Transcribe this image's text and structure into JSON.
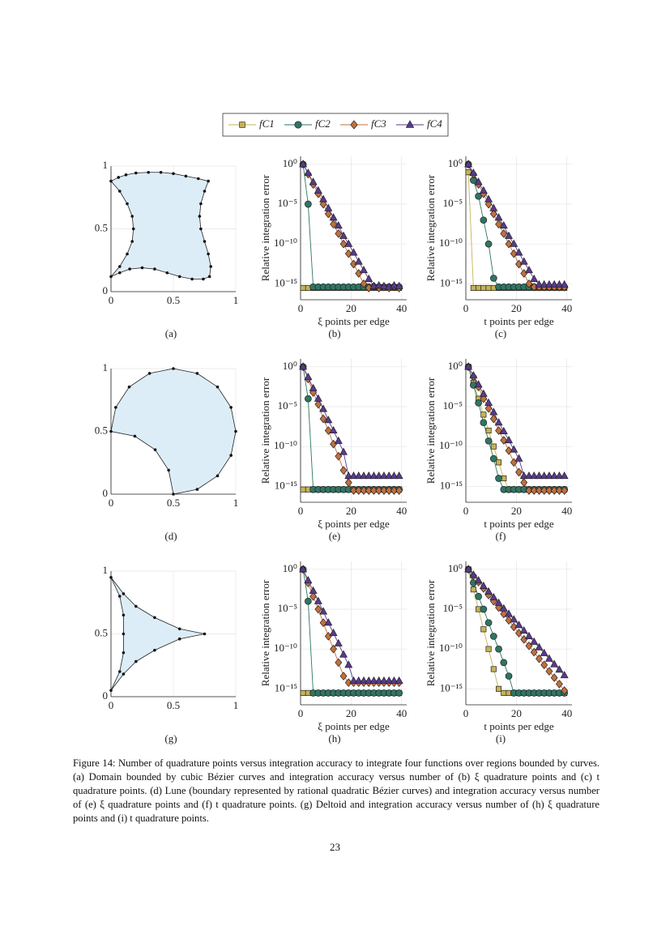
{
  "series": [
    {
      "name": "fC1",
      "color": "#c4b356",
      "marker": "square"
    },
    {
      "name": "fC2",
      "color": "#2f7563",
      "marker": "circle"
    },
    {
      "name": "fC3",
      "color": "#c2703d",
      "marker": "diamond"
    },
    {
      "name": "fC4",
      "color": "#5a3a8e",
      "marker": "triangle"
    }
  ],
  "panels": [
    {
      "type": "domain",
      "label": "(a)",
      "grid": true,
      "xlim": [
        0,
        1
      ],
      "ylim": [
        0,
        1
      ],
      "xticks": [
        0,
        0.5,
        1
      ],
      "yticks": [
        0,
        0.5,
        1
      ],
      "fill": "#dcedf8",
      "x": [
        0,
        0.06,
        0.12,
        0.2,
        0.3,
        0.4,
        0.5,
        0.6,
        0.7,
        0.78,
        0.75,
        0.72,
        0.71,
        0.72,
        0.75,
        0.78,
        0.8,
        0.79,
        0.74,
        0.65,
        0.55,
        0.45,
        0.35,
        0.25,
        0.15,
        0.07,
        0,
        0.07,
        0.13,
        0.17,
        0.18,
        0.17,
        0.13,
        0.07
      ],
      "y": [
        0.88,
        0.91,
        0.93,
        0.945,
        0.95,
        0.95,
        0.94,
        0.92,
        0.9,
        0.88,
        0.8,
        0.7,
        0.6,
        0.5,
        0.4,
        0.3,
        0.2,
        0.12,
        0.1,
        0.1,
        0.12,
        0.15,
        0.18,
        0.19,
        0.18,
        0.15,
        0.12,
        0.2,
        0.3,
        0.4,
        0.5,
        0.6,
        0.7,
        0.8
      ]
    },
    {
      "type": "convergence",
      "label": "(b)",
      "xlabel": "ξ points per edge",
      "ylabel": "Relative integration error",
      "log": true,
      "grid": true,
      "xlim": [
        0,
        42
      ],
      "ylim": [
        1e-17,
        10
      ],
      "xticks": [
        0,
        20,
        40
      ],
      "yticks": [
        {
          "value": 1,
          "label": "10⁰"
        },
        {
          "value": 1e-05,
          "label": "10⁻⁵"
        },
        {
          "value": 1e-10,
          "label": "10⁻¹⁰"
        },
        {
          "value": 1e-15,
          "label": "10⁻¹⁵"
        }
      ],
      "x": [
        1,
        3,
        5,
        7,
        9,
        11,
        13,
        15,
        17,
        19,
        21,
        23,
        25,
        27,
        29,
        31,
        33,
        35,
        37,
        39
      ],
      "series": [
        {
          "values": [
            3e-16,
            3e-16,
            3e-16,
            3e-16,
            3e-16,
            3e-16,
            3e-16,
            3e-16,
            3e-16,
            3e-16,
            3e-16,
            3e-16,
            3e-16,
            3e-16,
            3e-16,
            3e-16,
            3e-16,
            3e-16,
            3e-16,
            3e-16
          ]
        },
        {
          "values": [
            1,
            1e-05,
            4e-16,
            4e-16,
            4e-16,
            4e-16,
            4e-16,
            4e-16,
            4e-16,
            4e-16,
            4e-16,
            4e-16,
            4e-16,
            4e-16,
            4e-16,
            4e-16,
            4e-16,
            4e-16,
            4e-16,
            4e-16
          ]
        },
        {
          "values": [
            1,
            0.06,
            0.003,
            0.0002,
            1e-05,
            6e-07,
            3e-08,
            2e-09,
            1e-10,
            6e-12,
            3e-13,
            2e-14,
            1e-15,
            3e-16,
            5e-16,
            3e-16,
            4e-16,
            3e-16,
            5e-16,
            3e-16
          ]
        },
        {
          "values": [
            1,
            0.08,
            0.006,
            0.0005,
            4e-05,
            3e-06,
            2e-07,
            2e-08,
            1e-09,
            1e-10,
            8e-12,
            6e-13,
            5e-14,
            4e-15,
            5e-16,
            6e-16,
            5e-16,
            4e-16,
            6e-16,
            5e-16
          ]
        }
      ]
    },
    {
      "type": "convergence",
      "label": "(c)",
      "xlabel": "t points per edge",
      "ylabel": "Relative integration error",
      "log": true,
      "grid": true,
      "xlim": [
        0,
        42
      ],
      "ylim": [
        1e-17,
        10
      ],
      "xticks": [
        0,
        20,
        40
      ],
      "yticks": [
        {
          "value": 1,
          "label": "10⁰"
        },
        {
          "value": 1e-05,
          "label": "10⁻⁵"
        },
        {
          "value": 1e-10,
          "label": "10⁻¹⁰"
        },
        {
          "value": 1e-15,
          "label": "10⁻¹⁵"
        }
      ],
      "x": [
        1,
        3,
        5,
        7,
        9,
        11,
        13,
        15,
        17,
        19,
        21,
        23,
        25,
        27,
        29,
        31,
        33,
        35,
        37,
        39
      ],
      "series": [
        {
          "values": [
            0.1,
            3e-16,
            3e-16,
            3e-16,
            3e-16,
            3e-16,
            3e-16,
            3e-16,
            3e-16,
            3e-16,
            3e-16,
            3e-16,
            3e-16,
            3e-16,
            3e-16,
            3e-16,
            3e-16,
            3e-16,
            3e-16,
            3e-16
          ]
        },
        {
          "values": [
            1,
            0.01,
            0.0001,
            1e-07,
            1e-10,
            5e-15,
            4e-16,
            4e-16,
            4e-16,
            4e-16,
            4e-16,
            4e-16,
            4e-16,
            4e-16,
            4e-16,
            4e-16,
            4e-16,
            4e-16,
            4e-16,
            4e-16
          ]
        },
        {
          "values": [
            1,
            0.06,
            0.003,
            0.0002,
            1e-05,
            6e-07,
            3e-08,
            2e-09,
            1e-10,
            6e-12,
            3e-13,
            2e-14,
            1e-15,
            4e-16,
            4e-16,
            4e-16,
            4e-16,
            4e-16,
            4e-16,
            4e-16
          ]
        },
        {
          "values": [
            1,
            0.08,
            0.006,
            0.0005,
            4e-05,
            3e-06,
            2e-07,
            2e-08,
            1e-09,
            1e-10,
            8e-12,
            6e-13,
            5e-14,
            4e-15,
            8e-16,
            8e-16,
            8e-16,
            8e-16,
            8e-16,
            8e-16
          ]
        }
      ]
    },
    {
      "type": "domain",
      "label": "(d)",
      "grid": true,
      "xlim": [
        0,
        1
      ],
      "ylim": [
        0,
        1
      ],
      "xticks": [
        0,
        0.5,
        1
      ],
      "yticks": [
        0,
        0.5,
        1
      ],
      "fill": "#dcedf8",
      "x": [
        0,
        0.038,
        0.146,
        0.309,
        0.5,
        0.691,
        0.854,
        0.962,
        1,
        0.962,
        0.854,
        0.691,
        0.5,
        0.462,
        0.354,
        0.191
      ],
      "y": [
        0.5,
        0.691,
        0.854,
        0.962,
        1,
        0.962,
        0.854,
        0.691,
        0.5,
        0.309,
        0.146,
        0.038,
        0,
        0.191,
        0.354,
        0.462
      ]
    },
    {
      "type": "convergence",
      "label": "(e)",
      "xlabel": "ξ points per edge",
      "ylabel": "Relative integration error",
      "log": true,
      "grid": true,
      "xlim": [
        0,
        42
      ],
      "ylim": [
        1e-17,
        10
      ],
      "xticks": [
        0,
        20,
        40
      ],
      "yticks": [
        {
          "value": 1,
          "label": "10⁰"
        },
        {
          "value": 1e-05,
          "label": "10⁻⁵"
        },
        {
          "value": 1e-10,
          "label": "10⁻¹⁰"
        },
        {
          "value": 1e-15,
          "label": "10⁻¹⁵"
        }
      ],
      "x": [
        1,
        3,
        5,
        7,
        9,
        11,
        13,
        15,
        17,
        19,
        21,
        23,
        25,
        27,
        29,
        31,
        33,
        35,
        37,
        39
      ],
      "series": [
        {
          "values": [
            4e-16,
            4e-16,
            4e-16,
            4e-16,
            4e-16,
            4e-16,
            4e-16,
            4e-16,
            4e-16,
            4e-16,
            4e-16,
            4e-16,
            4e-16,
            4e-16,
            4e-16,
            4e-16,
            4e-16,
            4e-16,
            4e-16,
            4e-16
          ]
        },
        {
          "values": [
            1,
            0.0001,
            4e-16,
            4e-16,
            4e-16,
            4e-16,
            4e-16,
            4e-16,
            4e-16,
            4e-16,
            4e-16,
            4e-16,
            4e-16,
            4e-16,
            4e-16,
            4e-16,
            4e-16,
            4e-16,
            4e-16,
            4e-16
          ]
        },
        {
          "values": [
            1,
            0.03,
            0.0006,
            2e-05,
            3e-07,
            1e-08,
            2e-10,
            6e-12,
            1e-13,
            3e-15,
            3e-16,
            3e-16,
            3e-16,
            3e-16,
            3e-16,
            3e-16,
            3e-16,
            3e-16,
            3e-16,
            3e-16
          ]
        },
        {
          "values": [
            1,
            0.05,
            0.002,
            0.0001,
            5e-06,
            2e-07,
            1e-08,
            5e-10,
            2e-11,
            2e-14,
            2e-14,
            2e-14,
            2e-14,
            2e-14,
            2e-14,
            2e-14,
            2e-14,
            2e-14,
            2e-14,
            2e-14
          ]
        }
      ]
    },
    {
      "type": "convergence",
      "label": "(f)",
      "xlabel": "t points per edge",
      "ylabel": "Relative integration error",
      "log": true,
      "grid": true,
      "xlim": [
        0,
        42
      ],
      "ylim": [
        1e-17,
        10
      ],
      "xticks": [
        0,
        20,
        40
      ],
      "yticks": [
        {
          "value": 1,
          "label": "10⁰"
        },
        {
          "value": 1e-05,
          "label": "10⁻⁵"
        },
        {
          "value": 1e-10,
          "label": "10⁻¹⁰"
        },
        {
          "value": 1e-15,
          "label": "10⁻¹⁵"
        }
      ],
      "x": [
        1,
        3,
        5,
        7,
        9,
        11,
        13,
        15,
        17,
        19,
        21,
        23,
        25,
        27,
        29,
        31,
        33,
        35,
        37,
        39
      ],
      "series": [
        {
          "values": [
            1,
            0.01,
            0.0001,
            1e-06,
            1e-08,
            1e-10,
            1e-12,
            1e-14,
            4e-16,
            4e-16,
            4e-16,
            4e-16,
            4e-16,
            4e-16,
            4e-16,
            4e-16,
            4e-16,
            4e-16,
            4e-16,
            4e-16
          ]
        },
        {
          "values": [
            1,
            0.005,
            3e-05,
            1e-07,
            5e-10,
            3e-12,
            1e-14,
            4e-16,
            4e-16,
            4e-16,
            4e-16,
            4e-16,
            4e-16,
            4e-16,
            4e-16,
            4e-16,
            4e-16,
            4e-16,
            4e-16,
            4e-16
          ]
        },
        {
          "values": [
            1,
            0.06,
            0.003,
            0.0001,
            6e-06,
            3e-07,
            1e-08,
            6e-10,
            3e-11,
            1e-12,
            6e-14,
            3e-15,
            3e-16,
            3e-16,
            3e-16,
            3e-16,
            3e-16,
            3e-16,
            3e-16,
            3e-16
          ]
        },
        {
          "values": [
            1,
            0.08,
            0.006,
            0.0004,
            3e-05,
            2e-06,
            1e-07,
            8e-09,
            6e-10,
            4e-11,
            3e-12,
            2e-14,
            2e-14,
            2e-14,
            2e-14,
            2e-14,
            2e-14,
            2e-14,
            2e-14,
            2e-14
          ]
        }
      ]
    },
    {
      "type": "domain",
      "label": "(g)",
      "grid": true,
      "xlim": [
        0,
        1
      ],
      "ylim": [
        0,
        1
      ],
      "xticks": [
        0,
        0.5,
        1
      ],
      "yticks": [
        0,
        0.5,
        1
      ],
      "fill": "#dcedf8",
      "x": [
        0,
        0.1,
        0.2,
        0.35,
        0.55,
        0.75,
        0.55,
        0.35,
        0.2,
        0.1,
        0,
        0.07,
        0.1,
        0.1,
        0.1,
        0.07
      ],
      "y": [
        0.95,
        0.82,
        0.72,
        0.63,
        0.54,
        0.5,
        0.46,
        0.37,
        0.28,
        0.18,
        0.05,
        0.2,
        0.35,
        0.5,
        0.65,
        0.8
      ]
    },
    {
      "type": "convergence",
      "label": "(h)",
      "xlabel": "ξ points per edge",
      "ylabel": "Relative integration error",
      "log": true,
      "grid": true,
      "xlim": [
        0,
        42
      ],
      "ylim": [
        1e-17,
        10
      ],
      "xticks": [
        0,
        20,
        40
      ],
      "yticks": [
        {
          "value": 1,
          "label": "10⁰"
        },
        {
          "value": 1e-05,
          "label": "10⁻⁵"
        },
        {
          "value": 1e-10,
          "label": "10⁻¹⁰"
        },
        {
          "value": 1e-15,
          "label": "10⁻¹⁵"
        }
      ],
      "x": [
        1,
        3,
        5,
        7,
        9,
        11,
        13,
        15,
        17,
        19,
        21,
        23,
        25,
        27,
        29,
        31,
        33,
        35,
        37,
        39
      ],
      "series": [
        {
          "values": [
            3e-16,
            3e-16,
            3e-16,
            3e-16,
            3e-16,
            3e-16,
            3e-16,
            3e-16,
            3e-16,
            3e-16,
            3e-16,
            3e-16,
            3e-16,
            3e-16,
            3e-16,
            3e-16,
            3e-16,
            3e-16,
            3e-16,
            3e-16
          ]
        },
        {
          "values": [
            1,
            0.0001,
            3e-16,
            3e-16,
            3e-16,
            3e-16,
            3e-16,
            3e-16,
            3e-16,
            3e-16,
            3e-16,
            3e-16,
            3e-16,
            3e-16,
            3e-16,
            3e-16,
            3e-16,
            3e-16,
            3e-16,
            3e-16
          ]
        },
        {
          "values": [
            1,
            0.02,
            0.0004,
            1e-05,
            2e-07,
            4e-09,
            1e-10,
            2e-12,
            4e-14,
            6e-15,
            6e-15,
            6e-15,
            6e-15,
            6e-15,
            6e-15,
            6e-15,
            6e-15,
            6e-15,
            6e-15,
            6e-15
          ]
        },
        {
          "values": [
            1,
            0.04,
            0.002,
            0.0001,
            5e-06,
            2e-07,
            1e-08,
            5e-10,
            2e-11,
            1e-12,
            1e-14,
            1e-14,
            1e-14,
            1e-14,
            1e-14,
            1e-14,
            1e-14,
            1e-14,
            1e-14,
            1e-14
          ]
        }
      ]
    },
    {
      "type": "convergence",
      "label": "(i)",
      "xlabel": "t points per edge",
      "ylabel": "Relative integration error",
      "log": true,
      "grid": true,
      "xlim": [
        0,
        42
      ],
      "ylim": [
        1e-17,
        10
      ],
      "xticks": [
        0,
        20,
        40
      ],
      "yticks": [
        {
          "value": 1,
          "label": "10⁰"
        },
        {
          "value": 1e-05,
          "label": "10⁻⁵"
        },
        {
          "value": 1e-10,
          "label": "10⁻¹⁰"
        },
        {
          "value": 1e-15,
          "label": "10⁻¹⁵"
        }
      ],
      "x": [
        1,
        3,
        5,
        7,
        9,
        11,
        13,
        15,
        17,
        19,
        21,
        23,
        25,
        27,
        29,
        31,
        33,
        35,
        37,
        39
      ],
      "series": [
        {
          "values": [
            1,
            0.003,
            1e-05,
            3e-08,
            1e-10,
            3e-13,
            1e-15,
            3e-16,
            3e-16,
            3e-16,
            3e-16,
            3e-16,
            3e-16,
            3e-16,
            3e-16,
            3e-16,
            3e-16,
            3e-16,
            3e-16,
            3e-16
          ]
        },
        {
          "values": [
            1,
            0.02,
            0.0004,
            1e-05,
            2e-07,
            4e-09,
            1e-10,
            2e-12,
            4e-14,
            3e-16,
            3e-16,
            3e-16,
            3e-16,
            3e-16,
            3e-16,
            3e-16,
            3e-16,
            3e-16,
            3e-16,
            3e-16
          ]
        },
        {
          "values": [
            1,
            0.16,
            0.025,
            0.004,
            0.0006,
            0.0001,
            1.6e-05,
            2.5e-06,
            4e-07,
            6e-08,
            1e-08,
            1.6e-09,
            2.5e-10,
            4e-11,
            6e-12,
            1e-12,
            1.6e-13,
            2.5e-14,
            4e-15,
            6e-16
          ]
        },
        {
          "values": [
            1,
            0.2,
            0.04,
            0.008,
            0.0016,
            0.0003,
            6e-05,
            1.2e-05,
            2.5e-06,
            5e-07,
            1e-07,
            2e-08,
            4e-09,
            8e-10,
            1.6e-10,
            3e-11,
            6e-12,
            1.2e-12,
            2.5e-13,
            5e-14
          ]
        }
      ]
    }
  ],
  "caption": "Figure 14: Number of quadrature points versus integration accuracy to integrate four functions over regions bounded by curves. (a) Domain bounded by cubic Bézier curves and integration accuracy versus number of (b) ξ quadrature points and (c) t quadrature points. (d) Lune (boundary represented by rational quadratic Bézier curves) and integration accuracy versus number of (e) ξ quadrature points and (f) t quadrature points. (g) Deltoid and integration accuracy versus number of (h) ξ quadrature points and (i) t quadrature points.",
  "page_number": "23"
}
